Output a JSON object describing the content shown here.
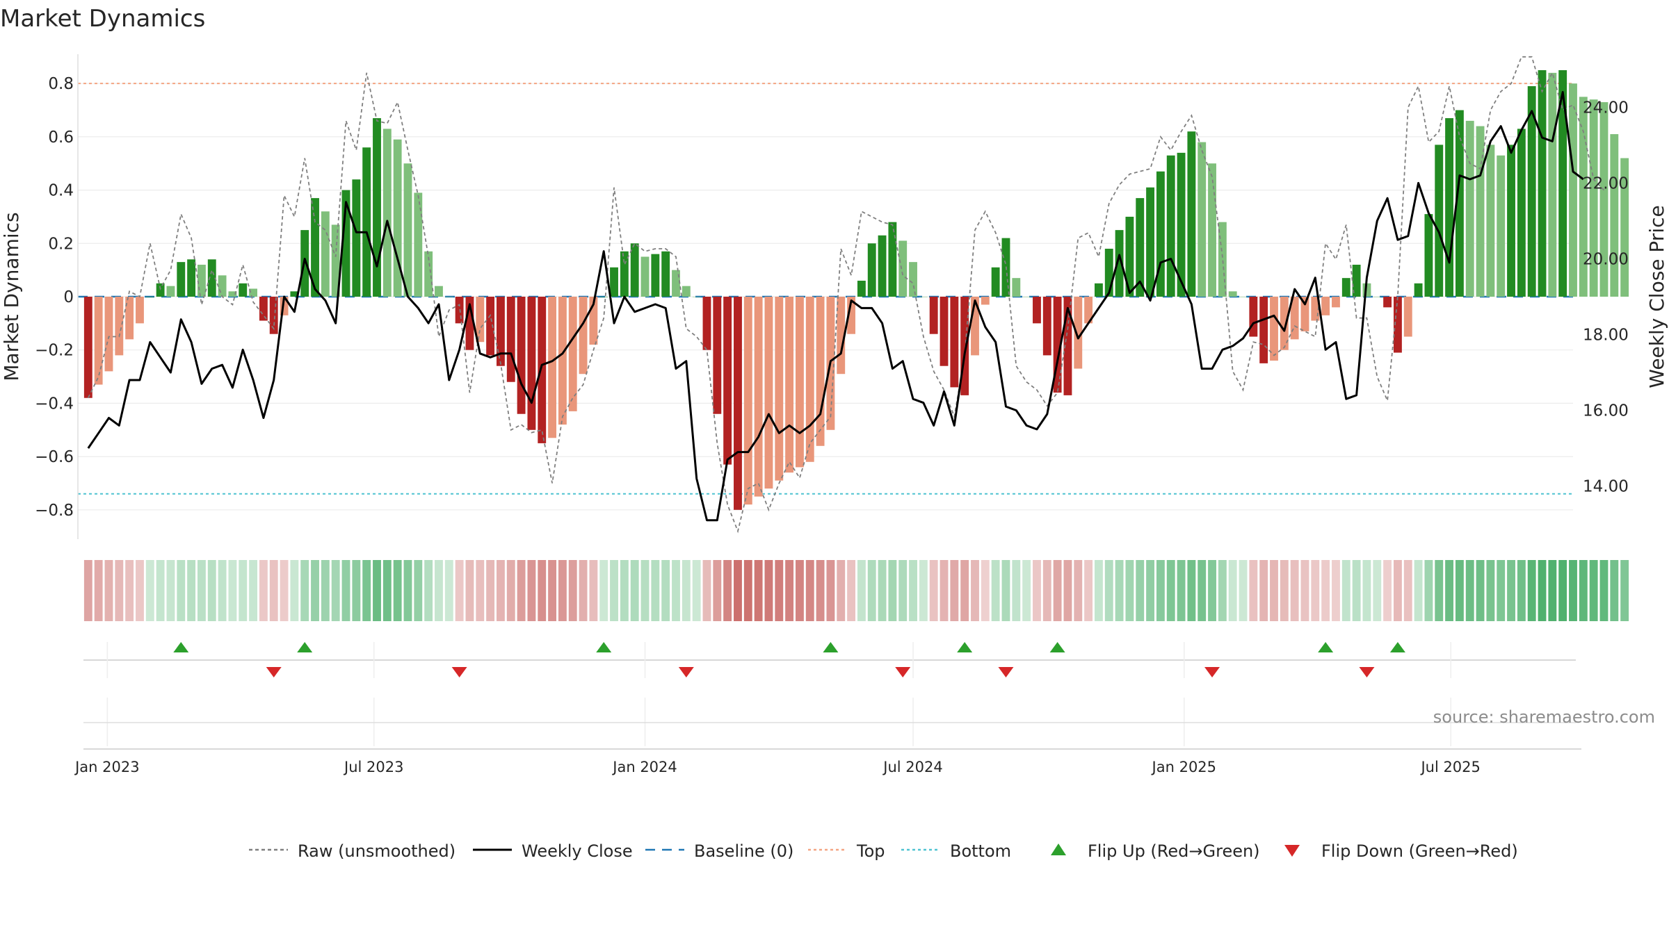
{
  "chart_data": {
    "type": "bar+line",
    "title": "Market Dynamics",
    "source": "source: sharemaestro.com",
    "ylabel_left": "Market Dynamics",
    "ylabel_right": "Weekly Close Price",
    "ylim_left": [
      -0.91,
      0.91
    ],
    "ylim_right": [
      12.6,
      25.4
    ],
    "yticks_left": [
      -0.8,
      -0.6,
      -0.4,
      -0.2,
      0.0,
      0.2,
      0.4,
      0.6,
      0.8
    ],
    "ytick_labels_left": [
      "−0.8",
      "−0.6",
      "−0.4",
      "−0.2",
      "0",
      "0.2",
      "0.4",
      "0.6",
      "0.8"
    ],
    "yticks_right": [
      14,
      16,
      18,
      20,
      22,
      24
    ],
    "ytick_labels_right": [
      "14.00",
      "16.00",
      "18.00",
      "20.00",
      "22.00",
      "24.00"
    ],
    "x_start": "2022-12-19",
    "x_end": "2025-09-15",
    "x_range": [
      "2022-12-12",
      "2025-09-22"
    ],
    "xticks": [
      "2023-01-01",
      "2023-07-01",
      "2024-01-01",
      "2024-07-01",
      "2025-01-01",
      "2025-07-01"
    ],
    "xtick_labels": [
      "Jan 2023",
      "Jul 2023",
      "Jan 2024",
      "Jul 2024",
      "Jan 2025",
      "Jul 2025"
    ],
    "top_level": 0.8,
    "bottom_level": -0.74,
    "baseline": 0,
    "smoothed": [
      -0.38,
      -0.33,
      -0.28,
      -0.22,
      -0.16,
      -0.1,
      0.0,
      0.05,
      0.04,
      0.13,
      0.14,
      0.12,
      0.14,
      0.08,
      0.02,
      0.05,
      0.03,
      -0.09,
      -0.14,
      -0.07,
      0.02,
      0.25,
      0.37,
      0.32,
      0.27,
      0.4,
      0.44,
      0.56,
      0.67,
      0.63,
      0.59,
      0.5,
      0.39,
      0.17,
      0.04,
      0.0,
      -0.1,
      -0.2,
      -0.17,
      -0.22,
      -0.26,
      -0.32,
      -0.44,
      -0.5,
      -0.55,
      -0.53,
      -0.48,
      -0.43,
      -0.29,
      -0.18,
      0.0,
      0.11,
      0.17,
      0.2,
      0.15,
      0.16,
      0.17,
      0.1,
      0.04,
      0.0,
      -0.2,
      -0.44,
      -0.63,
      -0.8,
      -0.78,
      -0.75,
      -0.72,
      -0.69,
      -0.66,
      -0.64,
      -0.62,
      -0.56,
      -0.5,
      -0.29,
      -0.14,
      0.06,
      0.2,
      0.23,
      0.28,
      0.21,
      0.13,
      0.0,
      -0.14,
      -0.26,
      -0.34,
      -0.37,
      -0.22,
      -0.03,
      0.11,
      0.22,
      0.07,
      0.0,
      -0.1,
      -0.22,
      -0.36,
      -0.37,
      -0.27,
      -0.1,
      0.05,
      0.18,
      0.25,
      0.3,
      0.37,
      0.41,
      0.47,
      0.53,
      0.54,
      0.62,
      0.58,
      0.5,
      0.28,
      0.02,
      0.0,
      -0.15,
      -0.25,
      -0.24,
      -0.2,
      -0.16,
      -0.13,
      -0.09,
      -0.07,
      -0.04,
      0.07,
      0.12,
      0.05,
      0.0,
      -0.04,
      -0.21,
      -0.15,
      0.05,
      0.31,
      0.57,
      0.67,
      0.7,
      0.66,
      0.64,
      0.57,
      0.53,
      0.57,
      0.63,
      0.79,
      0.85,
      0.84,
      0.85,
      0.8,
      0.75,
      0.74,
      0.73,
      0.61,
      0.52
    ],
    "raw": [
      -0.38,
      -0.3,
      -0.15,
      -0.15,
      0.02,
      0.0,
      0.2,
      0.03,
      0.1,
      0.31,
      0.22,
      -0.03,
      0.1,
      0.0,
      -0.03,
      0.12,
      -0.02,
      -0.07,
      -0.12,
      0.38,
      0.3,
      0.52,
      0.28,
      0.25,
      0.15,
      0.66,
      0.55,
      0.84,
      0.66,
      0.65,
      0.73,
      0.55,
      0.38,
      0.15,
      -0.15,
      -0.05,
      -0.03,
      -0.36,
      -0.12,
      -0.07,
      -0.25,
      -0.5,
      -0.48,
      -0.51,
      -0.5,
      -0.7,
      -0.45,
      -0.38,
      -0.33,
      -0.2,
      -0.08,
      0.41,
      0.12,
      0.2,
      0.17,
      0.18,
      0.18,
      0.15,
      -0.12,
      -0.15,
      -0.2,
      -0.55,
      -0.78,
      -0.88,
      -0.72,
      -0.7,
      -0.8,
      -0.7,
      -0.62,
      -0.68,
      -0.55,
      -0.5,
      -0.45,
      0.18,
      0.08,
      0.32,
      0.3,
      0.28,
      0.27,
      0.08,
      0.05,
      -0.15,
      -0.28,
      -0.35,
      -0.45,
      -0.22,
      0.25,
      0.32,
      0.24,
      0.12,
      -0.26,
      -0.32,
      -0.35,
      -0.41,
      -0.36,
      -0.12,
      0.22,
      0.24,
      0.15,
      0.35,
      0.42,
      0.46,
      0.47,
      0.48,
      0.6,
      0.55,
      0.62,
      0.68,
      0.55,
      0.45,
      0.15,
      -0.28,
      -0.35,
      -0.17,
      -0.18,
      -0.22,
      -0.19,
      -0.11,
      -0.13,
      -0.15,
      0.2,
      0.14,
      0.27,
      -0.08,
      -0.08,
      -0.3,
      -0.39,
      0.0,
      0.71,
      0.79,
      0.58,
      0.62,
      0.79,
      0.6,
      0.5,
      0.48,
      0.7,
      0.77,
      0.8,
      0.9,
      0.9,
      0.77,
      0.84,
      0.7,
      0.72,
      0.62,
      0.44,
      0.4
    ],
    "close": [
      15.0,
      15.4,
      15.8,
      15.6,
      16.8,
      16.8,
      17.8,
      17.4,
      17.0,
      18.4,
      17.8,
      16.7,
      17.1,
      17.2,
      16.6,
      17.6,
      16.8,
      15.8,
      16.8,
      19.0,
      18.6,
      20.0,
      19.2,
      18.9,
      18.3,
      21.5,
      20.7,
      20.7,
      19.8,
      21.0,
      20.0,
      19.0,
      18.7,
      18.3,
      18.8,
      16.8,
      17.6,
      18.8,
      17.5,
      17.4,
      17.5,
      17.5,
      16.7,
      16.2,
      17.2,
      17.3,
      17.5,
      17.9,
      18.3,
      18.8,
      20.2,
      18.3,
      19.0,
      18.6,
      18.7,
      18.8,
      18.7,
      17.1,
      17.3,
      14.2,
      13.1,
      13.1,
      14.7,
      14.9,
      14.9,
      15.3,
      15.9,
      15.4,
      15.6,
      15.4,
      15.6,
      15.9,
      17.3,
      17.5,
      18.9,
      18.7,
      18.7,
      18.3,
      17.1,
      17.3,
      16.3,
      16.2,
      15.6,
      16.5,
      15.6,
      17.5,
      18.9,
      18.2,
      17.8,
      16.1,
      16.0,
      15.6,
      15.5,
      15.9,
      17.3,
      18.7,
      17.9,
      18.3,
      18.7,
      19.1,
      20.1,
      19.1,
      19.4,
      18.9,
      19.9,
      20.0,
      19.4,
      18.8,
      17.1,
      17.1,
      17.6,
      17.7,
      17.9,
      18.3,
      18.4,
      18.5,
      18.1,
      19.2,
      18.8,
      19.5,
      17.6,
      17.8,
      16.3,
      16.4,
      19.5,
      21.0,
      21.6,
      20.5,
      20.6,
      22.0,
      21.2,
      20.7,
      19.9,
      22.2,
      22.1,
      22.2,
      23.1,
      23.5,
      22.8,
      23.4,
      23.9,
      23.2,
      23.1,
      24.4,
      22.3,
      22.1
    ],
    "flip_up_dates": [
      "2023-02-20",
      "2023-05-15",
      "2023-12-04",
      "2024-05-06",
      "2024-08-05",
      "2024-10-07",
      "2025-04-07",
      "2025-05-26"
    ],
    "flip_down_dates": [
      "2023-04-24",
      "2023-08-28",
      "2024-01-29",
      "2024-06-24",
      "2024-09-02",
      "2025-01-20",
      "2025-05-05"
    ],
    "legend": [
      {
        "label": "Raw (unsmoothed)",
        "style": "dashed-line",
        "color": "#7f7f7f"
      },
      {
        "label": "Weekly Close",
        "style": "solid-line",
        "color": "#000000"
      },
      {
        "label": "Baseline (0)",
        "style": "dashed-line",
        "color": "#1f77b4"
      },
      {
        "label": "Top",
        "style": "dotted-line",
        "color": "#f4a582"
      },
      {
        "label": "Bottom",
        "style": "dotted-line",
        "color": "#4fc3d1"
      },
      {
        "label": "Flip Up (Red→Green)",
        "style": "triangle-up",
        "color": "#2ca02c"
      },
      {
        "label": "Flip Down (Green→Red)",
        "style": "triangle-down",
        "color": "#d62728"
      }
    ],
    "colors": {
      "green_rising": "#228b22",
      "green_falling": "#7fbf7b",
      "red_falling": "#b22222",
      "red_rising": "#e9967a",
      "flip_up": "#2ca02c",
      "flip_down": "#d62728",
      "top": "#f4a582",
      "bottom": "#4fc3d1",
      "baseline": "#1f77b4"
    }
  }
}
